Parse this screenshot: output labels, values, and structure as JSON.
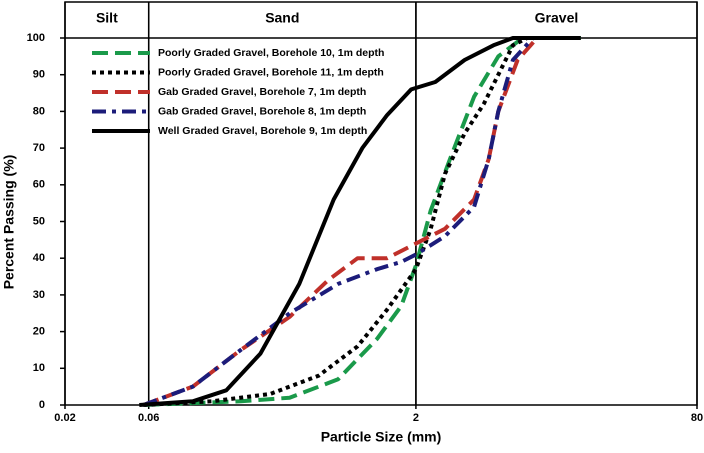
{
  "chart_data": {
    "type": "line",
    "xlabel": "Particle Size (mm)",
    "ylabel": "Percent Passing (%)",
    "xscale": "log",
    "xlim": [
      0.02,
      80
    ],
    "xticks": [
      0.02,
      0.06,
      2,
      80
    ],
    "ylim": [
      0,
      100
    ],
    "yticks": [
      0,
      10,
      20,
      30,
      40,
      50,
      60,
      70,
      80,
      90,
      100
    ],
    "legend": "upper left",
    "zones": [
      {
        "label": "Silt",
        "from": 0.02,
        "to": 0.06
      },
      {
        "label": "Sand",
        "from": 0.06,
        "to": 2
      },
      {
        "label": "Gravel",
        "from": 2,
        "to": 80
      }
    ],
    "series": [
      {
        "name": "Poorly Graded Gravel, Borehole 10, 1m depth",
        "color": "#1a9a4a",
        "style": "dashed",
        "x": [
          0.056,
          0.201,
          0.381,
          0.72,
          1.2,
          1.65,
          2.0,
          2.43,
          3.13,
          4.29,
          5.9,
          8.1,
          17.4
        ],
        "values": [
          0,
          1,
          2,
          7,
          18,
          27,
          38,
          53,
          67,
          84,
          95,
          100,
          100
        ]
      },
      {
        "name": "Poorly Graded Gravel, Borehole 11, 1m depth",
        "color": "#000000",
        "style": "dotted",
        "x": [
          0.056,
          0.137,
          0.295,
          0.559,
          0.93,
          1.37,
          2.0,
          2.43,
          2.93,
          3.79,
          4.87,
          5.9,
          7.14,
          8.6
        ],
        "values": [
          0,
          1,
          3,
          8,
          16,
          26,
          37,
          48,
          63,
          74,
          82,
          90,
          98,
          100
        ]
      },
      {
        "name": "Gab Graded Gravel, Borehole 7, 1m depth",
        "color": "#c0302a",
        "style": "dashed",
        "x": [
          0.056,
          0.107,
          0.201,
          0.381,
          0.632,
          0.93,
          1.37,
          2.0,
          2.93,
          4.29,
          5.2,
          5.9,
          7.6,
          9.8,
          17.4
        ],
        "values": [
          0,
          5,
          15,
          24,
          34,
          40,
          40,
          44,
          48,
          56,
          67,
          80,
          94,
          100,
          100
        ]
      },
      {
        "name": "Gab Graded Gravel, Borehole 8, 1m depth",
        "color": "#1c1c7a",
        "style": "dashdot",
        "x": [
          0.056,
          0.107,
          0.201,
          0.381,
          0.72,
          1.2,
          1.65,
          2.0,
          2.93,
          4.29,
          5.2,
          5.9,
          7.14,
          9.3,
          17.4
        ],
        "values": [
          0,
          5,
          15,
          25,
          33,
          37,
          39,
          41,
          46,
          54,
          67,
          80,
          94,
          100,
          100
        ]
      },
      {
        "name": "Well Graded Gravel, Borehole 9, 1m depth",
        "color": "#000000",
        "style": "solid",
        "x": [
          0.053,
          0.107,
          0.166,
          0.26,
          0.433,
          0.68,
          0.99,
          1.37,
          1.88,
          2.58,
          3.79,
          5.54,
          7.14,
          17.4
        ],
        "values": [
          0,
          1,
          4,
          14,
          33,
          56,
          70,
          79,
          86,
          88,
          94,
          98,
          100,
          100
        ]
      }
    ]
  }
}
